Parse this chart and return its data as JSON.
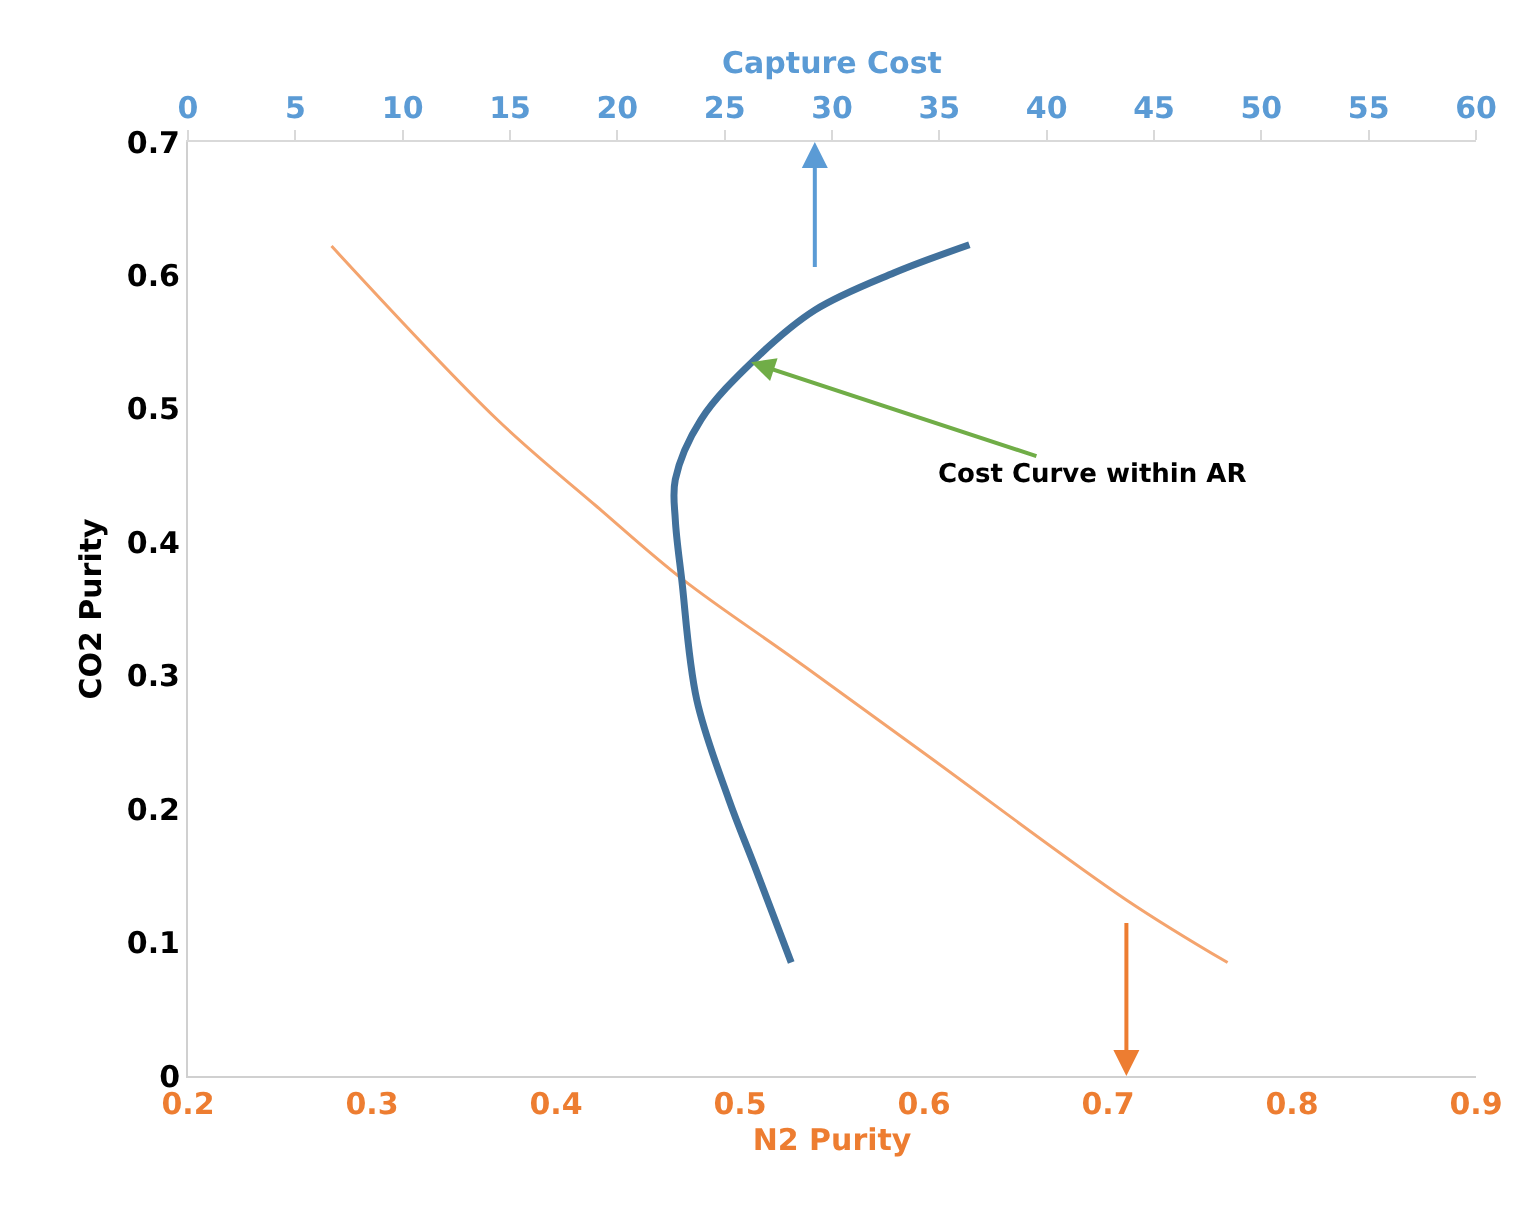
{
  "chart_data": {
    "type": "line",
    "xlabel": "N2 Purity",
    "x2label": "Capture Cost",
    "ylabel": "CO2 Purity",
    "xlim": [
      0.2,
      0.9
    ],
    "xticks": [
      0.2,
      0.3,
      0.4,
      0.5,
      0.6,
      0.7,
      0.8,
      0.9
    ],
    "x2lim": [
      0,
      60
    ],
    "x2ticks": [
      0,
      5,
      10,
      15,
      20,
      25,
      30,
      35,
      40,
      45,
      50,
      55,
      60
    ],
    "ylim": [
      0,
      0.7
    ],
    "yticks": [
      0,
      0.1,
      0.2,
      0.3,
      0.4,
      0.5,
      0.6,
      0.7
    ],
    "legend": false,
    "series": [
      {
        "color": "#f4a46e",
        "x": [
          0.278,
          0.368,
          0.422,
          0.469,
          0.53,
          0.602,
          0.71,
          0.765
        ],
        "values": [
          0.622,
          0.492,
          0.427,
          0.372,
          0.312,
          0.24,
          0.132,
          0.085
        ]
      },
      {
        "color": "#41719c",
        "axis": "x2",
        "x": [
          28.1,
          26.4,
          25.2,
          23.7,
          23.0,
          22.7,
          22.7,
          23.9,
          26.4,
          29.2,
          32.9,
          36.4
        ],
        "values": [
          0.085,
          0.157,
          0.207,
          0.282,
          0.372,
          0.417,
          0.447,
          0.492,
          0.537,
          0.574,
          0.602,
          0.623
        ]
      }
    ],
    "annotations": [
      {
        "text": "Cost Curve within AR",
        "x": 0.506,
        "y": 0.535
      }
    ]
  }
}
